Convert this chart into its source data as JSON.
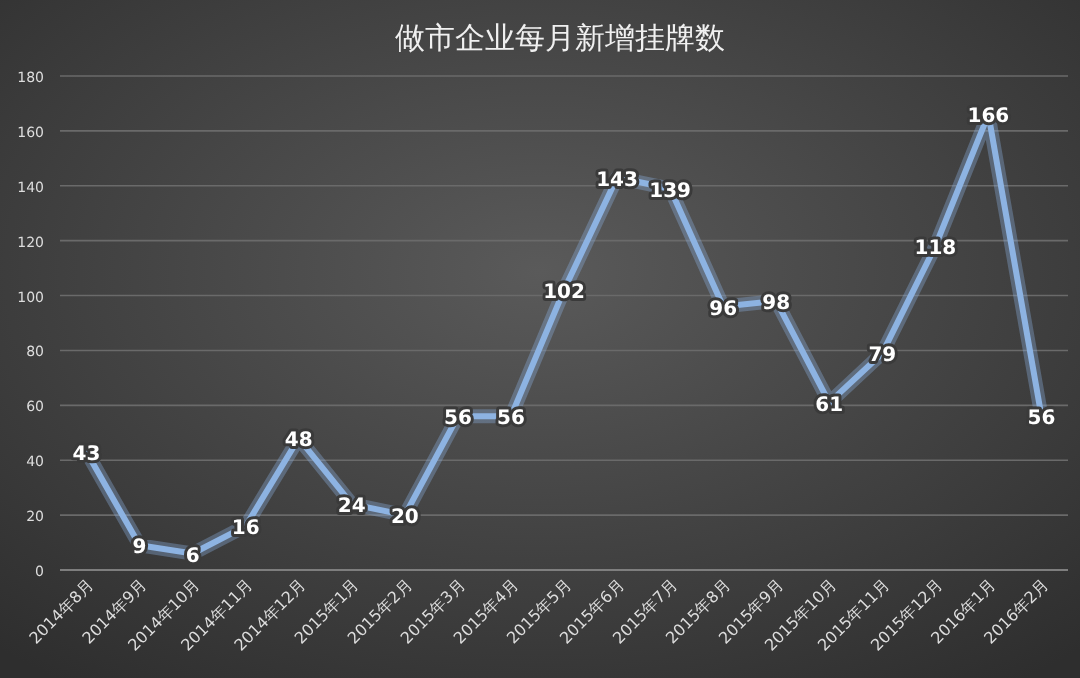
{
  "chart_data": {
    "type": "line",
    "title": "做市企业每月新增挂牌数",
    "categories": [
      "2014年8月",
      "2014年9月",
      "2014年10月",
      "2014年11月",
      "2014年12月",
      "2015年1月",
      "2015年2月",
      "2015年3月",
      "2015年4月",
      "2015年5月",
      "2015年6月",
      "2015年7月",
      "2015年8月",
      "2015年9月",
      "2015年10月",
      "2015年11月",
      "2015年12月",
      "2016年1月",
      "2016年2月"
    ],
    "series": [
      {
        "color": "#8db3e2",
        "values": [
          43,
          9,
          6,
          16,
          48,
          24,
          20,
          56,
          56,
          102,
          143,
          139,
          96,
          98,
          61,
          79,
          118,
          166,
          56
        ]
      }
    ],
    "ylim": [
      0,
      180
    ],
    "yticks": [
      0,
      20,
      40,
      60,
      80,
      100,
      120,
      140,
      160,
      180
    ],
    "grid": "y",
    "data_labels": true,
    "marker": "none",
    "line_style": "solid"
  }
}
